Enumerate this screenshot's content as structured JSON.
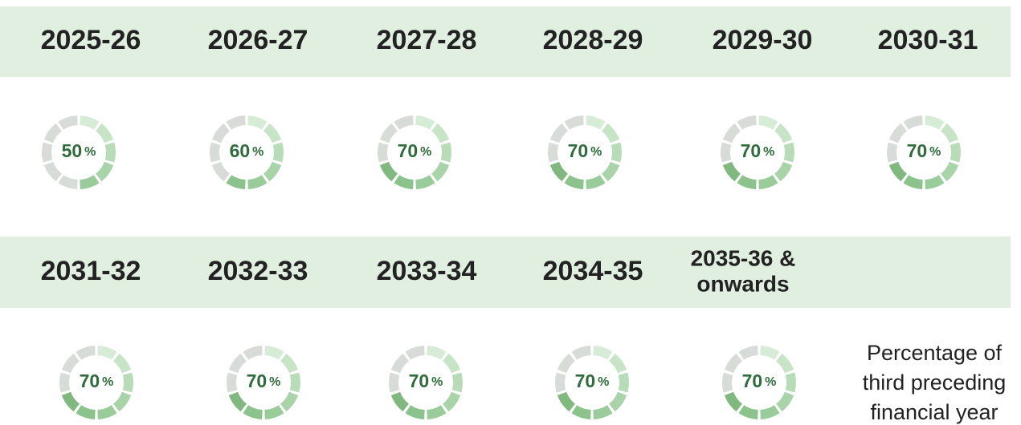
{
  "unit": "%",
  "items": [
    {
      "year": [
        "2025-26"
      ],
      "value": 50
    },
    {
      "year": [
        "2026-27"
      ],
      "value": 60
    },
    {
      "year": [
        "2027-28"
      ],
      "value": 70
    },
    {
      "year": [
        "2028-29"
      ],
      "value": 70
    },
    {
      "year": [
        "2029-30"
      ],
      "value": 70
    },
    {
      "year": [
        "2030-31"
      ],
      "value": 70
    },
    {
      "year": [
        "2031-32"
      ],
      "value": 70
    },
    {
      "year": [
        "2032-33"
      ],
      "value": 70
    },
    {
      "year": [
        "2033-34"
      ],
      "value": 70
    },
    {
      "year": [
        "2034-35"
      ],
      "value": 70
    },
    {
      "year": [
        "2035-36 &",
        "onwards"
      ],
      "value": 70
    }
  ],
  "note": [
    "Percentage of",
    "third preceding",
    "financial year"
  ]
}
